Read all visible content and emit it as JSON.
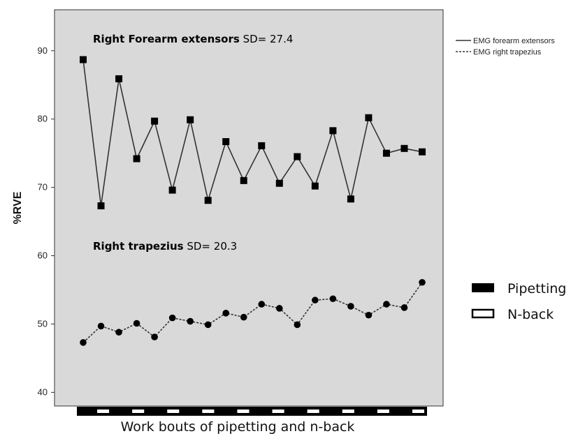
{
  "chart_data": {
    "type": "line",
    "xlabel": "Work bouts of pipetting and n-back",
    "ylabel": "%RVE",
    "ylim": [
      38,
      96
    ],
    "yticks": [
      40,
      50,
      60,
      70,
      80,
      90
    ],
    "grid": false,
    "background": "#d9d9d9",
    "x": [
      1,
      2,
      3,
      4,
      5,
      6,
      7,
      8,
      9,
      10,
      11,
      12,
      13,
      14,
      15,
      16,
      17,
      18,
      19,
      20
    ],
    "series": [
      {
        "name": "EMG forearm extensors",
        "style": "solid",
        "values": [
          88.7,
          67.3,
          85.9,
          74.2,
          79.7,
          69.6,
          79.9,
          68.1,
          76.7,
          71.0,
          76.1,
          70.6,
          74.5,
          70.2,
          78.3,
          68.3,
          80.2,
          75.0,
          75.7,
          75.2
        ]
      },
      {
        "name": "EMG right trapezius",
        "style": "dotted",
        "values": [
          47.3,
          49.7,
          48.8,
          50.1,
          48.1,
          50.9,
          50.4,
          49.9,
          51.6,
          51.0,
          52.9,
          52.3,
          49.9,
          53.5,
          53.7,
          52.6,
          51.3,
          52.9,
          52.4,
          56.1
        ]
      }
    ],
    "annotations": [
      {
        "bold": "Right Forearm extensors",
        "normal": " SD= 27.4"
      },
      {
        "bold": "Right trapezius",
        "normal": " SD= 20.3"
      }
    ],
    "bar_legend": [
      {
        "label": "Pipetting",
        "fill": "#000000"
      },
      {
        "label": "N-back",
        "fill": "#ffffff"
      }
    ],
    "bouts": [
      "Pipetting",
      "N-back",
      "Pipetting",
      "N-back",
      "Pipetting",
      "N-back",
      "Pipetting",
      "N-back",
      "Pipetting",
      "N-back",
      "Pipetting",
      "N-back",
      "Pipetting",
      "N-back",
      "Pipetting",
      "N-back",
      "Pipetting",
      "N-back",
      "Pipetting",
      "N-back"
    ],
    "legend_position": "top-right"
  }
}
